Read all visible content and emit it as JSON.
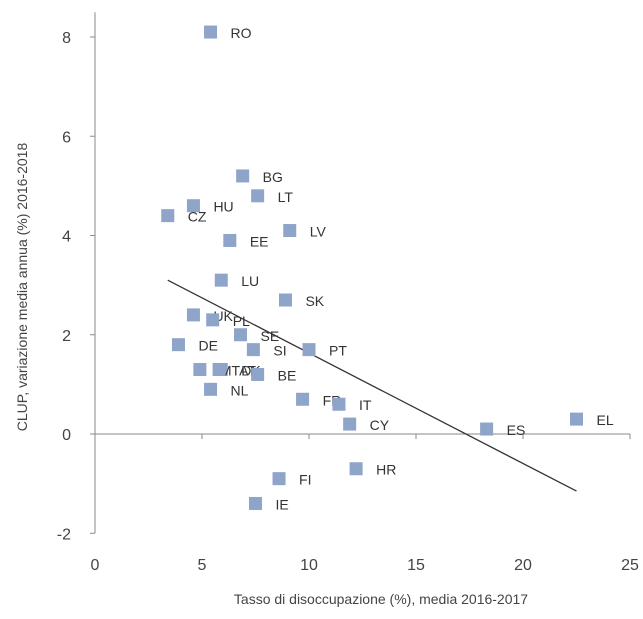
{
  "chart_data": {
    "type": "scatter",
    "title": "",
    "xlabel": "Tasso di disoccupazione (%), media 2016-2017",
    "ylabel": "CLUP, variazione media annua (%) 2016-2018",
    "xlim": [
      0,
      25
    ],
    "ylim": [
      -2,
      8.5
    ],
    "x_ticks": [
      "0",
      "5",
      "10",
      "15",
      "20",
      "25"
    ],
    "y_ticks": [
      "-2",
      "0",
      "2",
      "4",
      "6",
      "8"
    ],
    "grid": false,
    "marker_color": "#8EA4C8",
    "line_color": "#333333",
    "points": [
      {
        "label": "RO",
        "x": 5.4,
        "y": 8.1
      },
      {
        "label": "BG",
        "x": 6.9,
        "y": 5.2
      },
      {
        "label": "LT",
        "x": 7.6,
        "y": 4.8
      },
      {
        "label": "HU",
        "x": 4.6,
        "y": 4.6
      },
      {
        "label": "CZ",
        "x": 3.4,
        "y": 4.4
      },
      {
        "label": "LV",
        "x": 9.1,
        "y": 4.1
      },
      {
        "label": "EE",
        "x": 6.3,
        "y": 3.9
      },
      {
        "label": "LU",
        "x": 5.9,
        "y": 3.1
      },
      {
        "label": "SK",
        "x": 8.9,
        "y": 2.7
      },
      {
        "label": "UK",
        "x": 4.6,
        "y": 2.4
      },
      {
        "label": "PL",
        "x": 5.5,
        "y": 2.3
      },
      {
        "label": "SE",
        "x": 6.8,
        "y": 2.0
      },
      {
        "label": "DE",
        "x": 3.9,
        "y": 1.8
      },
      {
        "label": "PT",
        "x": 10.0,
        "y": 1.7
      },
      {
        "label": "SI",
        "x": 7.4,
        "y": 1.7
      },
      {
        "label": "DK",
        "x": 5.9,
        "y": 1.3
      },
      {
        "label": "MT",
        "x": 4.9,
        "y": 1.3
      },
      {
        "label": "AT",
        "x": 5.8,
        "y": 1.3
      },
      {
        "label": "BE",
        "x": 7.6,
        "y": 1.2
      },
      {
        "label": "NL",
        "x": 5.4,
        "y": 0.9
      },
      {
        "label": "FR",
        "x": 9.7,
        "y": 0.7
      },
      {
        "label": "IT",
        "x": 11.4,
        "y": 0.6
      },
      {
        "label": "CY",
        "x": 11.9,
        "y": 0.2
      },
      {
        "label": "ES",
        "x": 18.3,
        "y": 0.1
      },
      {
        "label": "EL",
        "x": 22.5,
        "y": 0.3
      },
      {
        "label": "HR",
        "x": 12.2,
        "y": -0.7
      },
      {
        "label": "FI",
        "x": 8.6,
        "y": -0.9
      },
      {
        "label": "IE",
        "x": 7.5,
        "y": -1.4
      }
    ],
    "trendline": {
      "x1": 3.4,
      "y1": 3.1,
      "x2": 22.5,
      "y2": -1.15
    }
  }
}
